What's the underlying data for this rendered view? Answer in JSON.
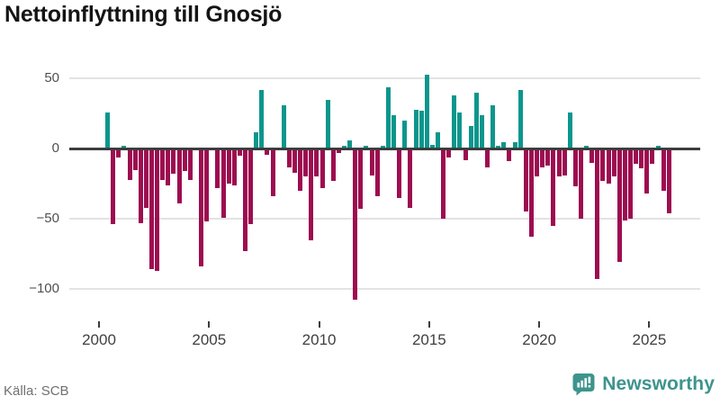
{
  "chart_data": {
    "type": "bar",
    "title": "Nettoinflyttning till Gnosjö",
    "x_start": "2000 Q1",
    "x_interval": "quarter",
    "x_tick_labels": [
      "2000",
      "2005",
      "2010",
      "2015",
      "2020",
      "2025"
    ],
    "y_axis": {
      "ticks": [
        {
          "value": 50,
          "label": "50"
        },
        {
          "value": 0,
          "label": "0"
        },
        {
          "value": -50,
          "label": "−50"
        },
        {
          "value": -100,
          "label": "−100"
        }
      ],
      "ylim": [
        -115,
        58
      ]
    },
    "grid": true,
    "legend": "none",
    "colors": {
      "positive": "#0b968d",
      "negative": "#9d0c50",
      "zero_line": "#3d3d3d",
      "gridline": "#e3e3e3"
    },
    "values": [
      1,
      26,
      -54,
      -6,
      2,
      -22,
      -15,
      -53,
      -42,
      -86,
      -87,
      -22,
      -26,
      -18,
      -39,
      -16,
      -22,
      -1,
      -84,
      -52,
      0,
      -28,
      -49,
      -25,
      -26,
      -5,
      -73,
      -54,
      12,
      42,
      -4,
      -34,
      0,
      31,
      -13,
      -17,
      -30,
      -20,
      -65,
      -20,
      -28,
      35,
      -23,
      -3,
      2,
      6,
      -108,
      -43,
      2,
      -19,
      -34,
      2,
      44,
      24,
      -35,
      20,
      -42,
      28,
      27,
      53,
      3,
      12,
      -50,
      -6,
      38,
      26,
      -8,
      16,
      40,
      24,
      -13,
      31,
      2,
      5,
      -9,
      5,
      42,
      -45,
      -63,
      -20,
      -13,
      -12,
      -55,
      -20,
      -19,
      26,
      -27,
      -50,
      2,
      -10,
      -93,
      -23,
      -25,
      -20,
      -81,
      -51,
      -50,
      -11,
      -14,
      -32,
      -11,
      2,
      -30,
      -46
    ]
  },
  "footer": {
    "source": "Källa: SCB",
    "brand": "Newsworthy",
    "brand_color": "#3d948c"
  }
}
